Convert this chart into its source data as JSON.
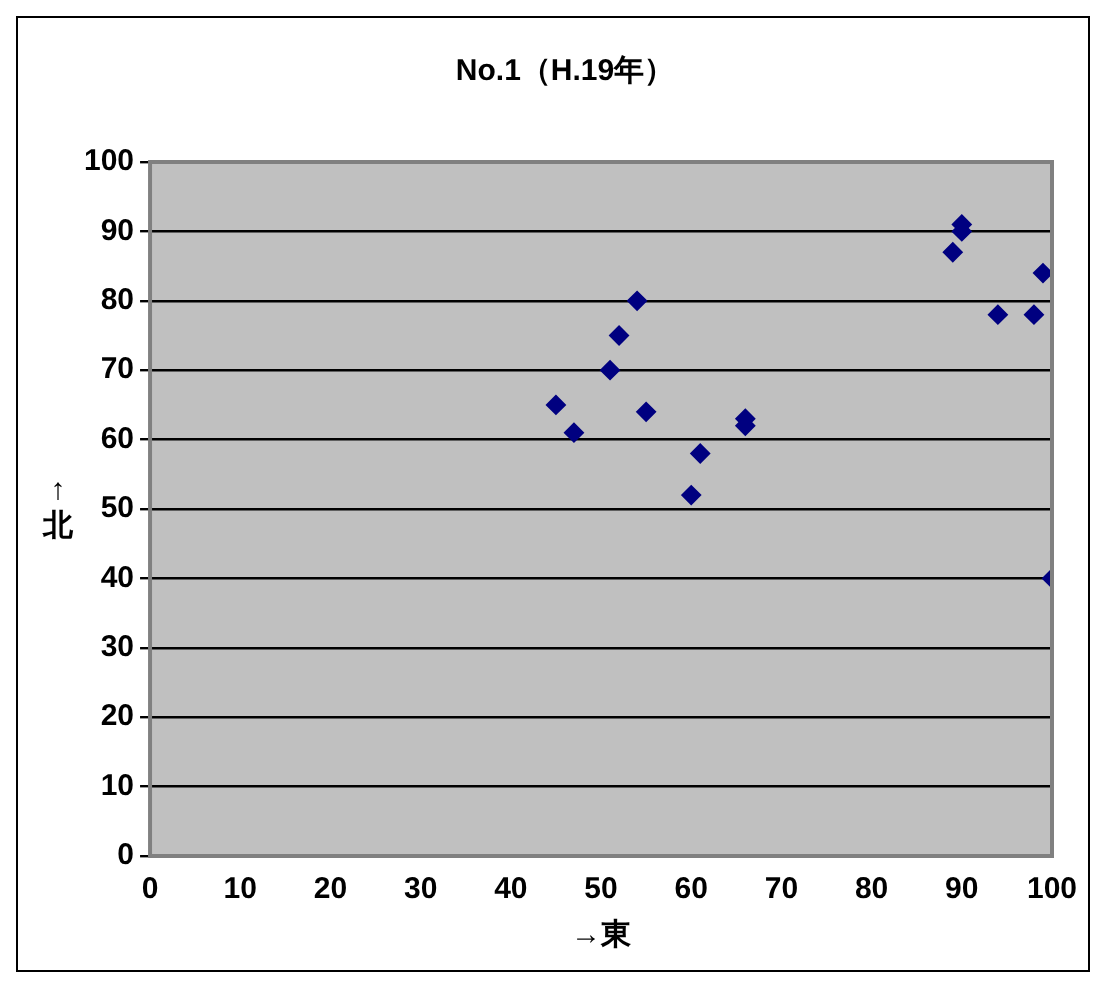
{
  "chart_data": {
    "type": "scatter",
    "title": "No.1（H.19年）",
    "xlabel": "→東",
    "ylabel": "↑北",
    "x": [
      45,
      47,
      51,
      52,
      54,
      55,
      60,
      61,
      66,
      66,
      89,
      90,
      90,
      94,
      98,
      99,
      100
    ],
    "series": [
      {
        "color": "#000080",
        "values": [
          65,
          61,
          70,
          75,
          80,
          64,
          52,
          58,
          63,
          62,
          87,
          90,
          91,
          78,
          78,
          84,
          40
        ]
      }
    ],
    "xlim": [
      0,
      100
    ],
    "xticks": [
      0,
      10,
      20,
      30,
      40,
      50,
      60,
      70,
      80,
      90,
      100
    ],
    "ylim": [
      0,
      100
    ],
    "yticks": [
      0,
      10,
      20,
      30,
      40,
      50,
      60,
      70,
      80,
      90,
      100
    ],
    "grid": "y",
    "marker": "diamond",
    "legend": false
  }
}
